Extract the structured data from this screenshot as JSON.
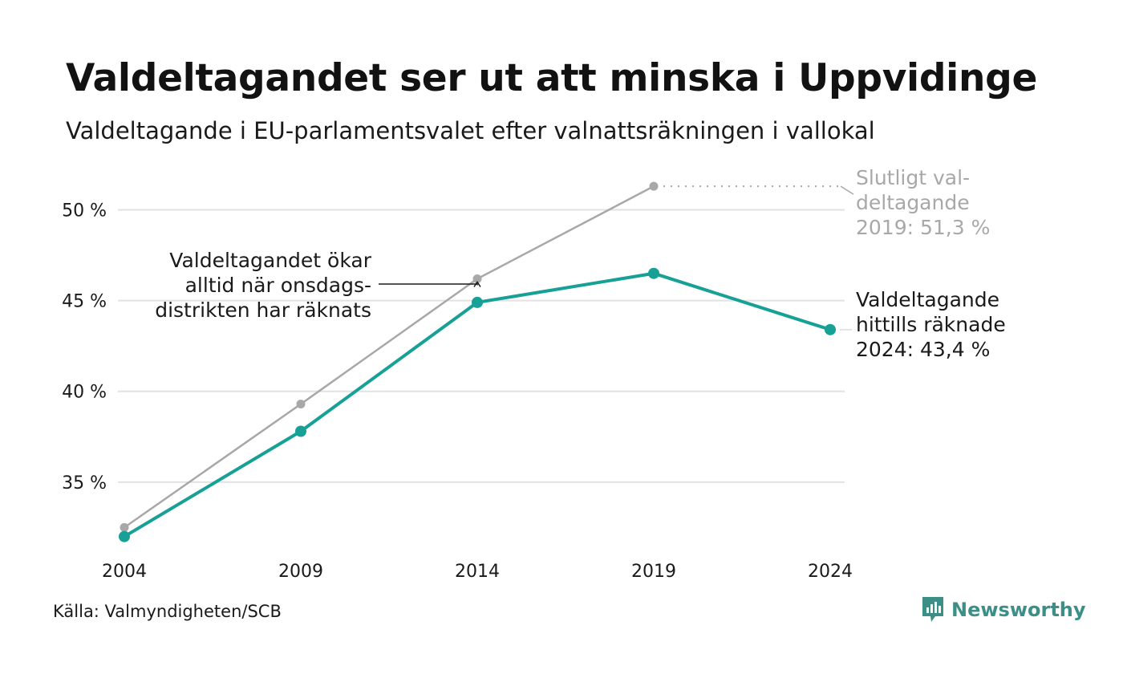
{
  "title": "Valdeltagandet ser ut att minska i Uppvidinge",
  "subtitle": "Valdeltagande i EU-parlamentsvalet efter valnattsräkningen i vallokal",
  "source": "Källa: Valmyndigheten/SCB",
  "brand": {
    "name": "Newsworthy",
    "icon": "newsworthy-logo-icon"
  },
  "colors": {
    "counted": "#16a096",
    "final": "#a8a8a8",
    "grid": "#e2e2e2",
    "text": "#1a1a1a",
    "brand": "#3c8f86"
  },
  "chart_data": {
    "type": "line",
    "x": [
      2004,
      2009,
      2014,
      2019,
      2024
    ],
    "x_tick_labels": [
      "2004",
      "2009",
      "2014",
      "2019",
      "2024"
    ],
    "y_ticks": [
      35,
      40,
      45,
      50
    ],
    "y_tick_labels": [
      "35 %",
      "40 %",
      "45 %",
      "50 %"
    ],
    "ylim": [
      31.5,
      52.5
    ],
    "grid": true,
    "series": [
      {
        "key": "final",
        "values": [
          32.5,
          39.3,
          46.2,
          51.3,
          null
        ]
      },
      {
        "key": "counted",
        "values": [
          32.0,
          37.8,
          44.9,
          46.5,
          43.4
        ]
      }
    ],
    "annotations": {
      "final_label": [
        "Slutligt val-",
        "deltagande",
        "2019: 51,3 %"
      ],
      "counted_label": [
        "Valdeltagande",
        "hittills räknade",
        "2024: 43,4 %"
      ],
      "note": [
        "Valdeltagandet ökar",
        "alltid när onsdags-",
        "distrikten har räknats"
      ]
    }
  }
}
